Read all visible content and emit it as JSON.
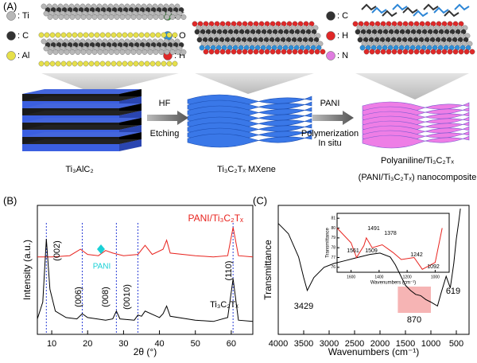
{
  "panel_a": {
    "label": "(A)",
    "legends": [
      [
        {
          "text": ": Ti",
          "color": "#b8b8b8"
        },
        {
          "text": ": C",
          "color": "#333333"
        },
        {
          "text": ": Al",
          "color": "#e6e04a"
        }
      ],
      [
        {
          "text": ": F",
          "color": "#3a9a3a"
        },
        {
          "text": ": O",
          "color": "#2f8fd8"
        },
        {
          "text": ": H",
          "color": "#e02828"
        }
      ],
      [
        {
          "text": ": C",
          "color": "#333333"
        },
        {
          "text": ": H",
          "color": "#e02828"
        },
        {
          "text": ": N",
          "color": "#e07de0"
        }
      ]
    ],
    "arrows": [
      {
        "top": "HF",
        "bottom": [
          "Etching"
        ]
      },
      {
        "top": "PANI",
        "bottom": [
          "Polymerization",
          "In situ"
        ]
      }
    ],
    "captions": [
      "Ti₃AlC₂",
      "Ti₃C₂Tₓ MXene",
      "Polyaniline/Ti₃C₂Tₓ",
      "(PANI/Ti₃C₂Tₓ) nanocomposite"
    ]
  },
  "chart_data": [
    {
      "type": "line",
      "label": "(B)",
      "xlabel": "2θ (°)",
      "ylabel": "Intensity (a.u.)",
      "xlim": [
        6,
        66
      ],
      "ylim": [
        0,
        10
      ],
      "xticks": [
        10,
        20,
        30,
        40,
        50,
        60
      ],
      "series": [
        {
          "name": "PANI/Ti₃C₂Tₓ",
          "color": "#e8231e",
          "x": [
            6,
            10,
            15,
            18,
            20,
            23,
            25,
            27,
            30,
            34,
            36,
            38,
            41,
            42,
            43,
            50,
            55,
            59,
            60.5,
            62,
            66
          ],
          "values": [
            6.0,
            6.0,
            6.1,
            6.6,
            6.2,
            6.1,
            6.5,
            6.3,
            6.1,
            6.2,
            6.9,
            6.2,
            6.6,
            7.3,
            6.3,
            6.1,
            6.0,
            6.1,
            8.3,
            6.1,
            6.0
          ]
        },
        {
          "name": "Ti₃C₂Tₓ",
          "color": "#000000",
          "x": [
            6,
            7.5,
            8.5,
            9.5,
            11,
            14,
            17,
            18.5,
            20,
            25,
            27,
            28,
            29,
            33,
            34,
            35,
            36,
            40,
            41,
            42,
            43,
            50,
            55,
            59,
            60.5,
            62,
            66
          ],
          "values": [
            1.2,
            2.5,
            7.4,
            3.5,
            1.8,
            1.3,
            1.2,
            1.6,
            1.3,
            1.1,
            1.2,
            1.8,
            1.2,
            1.1,
            1.5,
            1.4,
            1.8,
            1.3,
            1.6,
            2.2,
            1.4,
            1.1,
            1.0,
            1.3,
            4.3,
            1.1,
            1.0
          ]
        }
      ],
      "peak_lines": [
        8.5,
        18.5,
        28,
        34,
        60.5
      ],
      "peak_line_color": "#2b3fd6",
      "annotations": [
        "(002)",
        "(006)",
        "(008)",
        "(0010)",
        "(110)"
      ],
      "marker": {
        "text": "PANI",
        "color": "#19d0d6"
      }
    },
    {
      "type": "line",
      "label": "(C)",
      "xlabel": "Wavenumbers (cm⁻¹)",
      "ylabel": "Transmittance",
      "xlim": [
        4000,
        250
      ],
      "ylim": [
        0,
        10
      ],
      "xticks": [
        4000,
        3500,
        3000,
        2500,
        2000,
        1500,
        1000,
        500
      ],
      "color": "#000000",
      "x": [
        4000,
        3800,
        3600,
        3500,
        3429,
        3300,
        3100,
        2900,
        2700,
        2500,
        2200,
        2000,
        1800,
        1700,
        1600,
        1500,
        1400,
        1300,
        1200,
        1100,
        1000,
        870,
        800,
        700,
        619,
        550,
        500,
        450,
        420
      ],
      "values": [
        8.6,
        7.8,
        6.0,
        4.4,
        3.4,
        4.4,
        5.2,
        5.5,
        5.7,
        5.9,
        6.2,
        6.3,
        6.0,
        5.4,
        4.6,
        3.8,
        3.4,
        3.1,
        3.0,
        2.7,
        2.5,
        2.2,
        3.2,
        4.5,
        3.6,
        5.5,
        7.4,
        8.8,
        9.75
      ],
      "highlight": [
        1650,
        1000
      ],
      "highlight_color": "#f4a7a7",
      "annotations": [
        "3429",
        "870",
        "619"
      ],
      "inset": {
        "xlabel": "Wavenumbers (cm⁻¹)",
        "ylabel": "Transmittance",
        "color": "#e8231e",
        "xlim": [
          1700,
          900
        ],
        "ylim": [
          75.5,
          81.5
        ],
        "xticks": [
          1600,
          1400,
          1200,
          1000
        ],
        "yticks": [
          76,
          77,
          78,
          79,
          80,
          81
        ],
        "x": [
          1700,
          1600,
          1561,
          1509,
          1491,
          1450,
          1378,
          1300,
          1242,
          1150,
          1092,
          1000,
          950
        ],
        "values": [
          80,
          78.5,
          77,
          78.2,
          79,
          78,
          78.3,
          77.5,
          76.8,
          77,
          75.8,
          76.5,
          80
        ],
        "annotations": [
          "1491",
          "1378",
          "1561",
          "1509",
          "1242",
          "1092"
        ]
      }
    }
  ]
}
